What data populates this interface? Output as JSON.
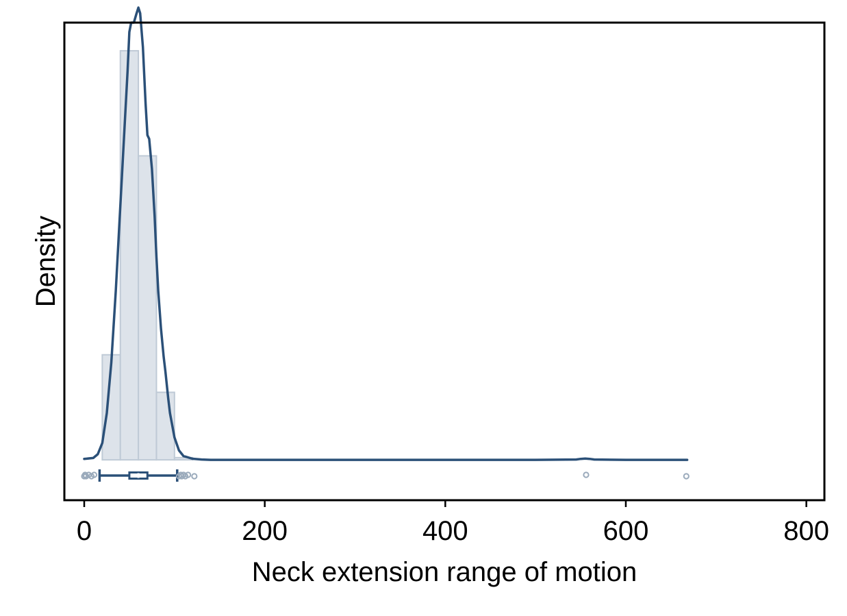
{
  "chart_data": {
    "type": "histogram",
    "title": "",
    "xlabel": "Neck extension range of motion",
    "ylabel": "Density",
    "xlim": [
      -22,
      820
    ],
    "ylim": [
      -0.00215,
      0.0233
    ],
    "xticks": [
      0,
      200,
      400,
      600,
      800
    ],
    "xtick_labels": [
      "0",
      "200",
      "400",
      "600",
      "800"
    ],
    "show_y_ticks": false,
    "grid": false,
    "legend": "none",
    "colors": {
      "frame": "#000000",
      "bar_fill": "#dde3ea",
      "bar_edge": "#bfcad6",
      "line": "#2b5078",
      "points": "#9aaabb"
    },
    "histogram": {
      "bin_width": 20,
      "bins": [
        {
          "start": 20,
          "end": 40,
          "density": 0.0056
        },
        {
          "start": 40,
          "end": 60,
          "density": 0.0218
        },
        {
          "start": 60,
          "end": 80,
          "density": 0.0162
        },
        {
          "start": 80,
          "end": 100,
          "density": 0.0036
        },
        {
          "start": 100,
          "end": 120,
          "density": 0.00012
        }
      ]
    },
    "density_curve": {
      "x": [
        0,
        10,
        15,
        20,
        25,
        30,
        35,
        40,
        45,
        48,
        50,
        52,
        55,
        58,
        60,
        62,
        65,
        68,
        70,
        72,
        75,
        78,
        80,
        82,
        85,
        88,
        90,
        93,
        95,
        100,
        105,
        110,
        120,
        130,
        140,
        200,
        300,
        400,
        500,
        545,
        550,
        555,
        560,
        565,
        600,
        640,
        668
      ],
      "y": [
        5e-05,
        0.0001,
        0.0003,
        0.0009,
        0.0025,
        0.0052,
        0.009,
        0.0135,
        0.018,
        0.0207,
        0.0228,
        0.0233,
        0.0233,
        0.0238,
        0.0241,
        0.0238,
        0.022,
        0.019,
        0.0173,
        0.0171,
        0.0155,
        0.013,
        0.0108,
        0.009,
        0.007,
        0.0055,
        0.0047,
        0.0033,
        0.0025,
        0.0012,
        0.0005,
        0.0002,
        6e-05,
        2e-05,
        0.0,
        0.0,
        0.0,
        0.0,
        0.0,
        2e-05,
        5e-05,
        7e-05,
        5e-05,
        2e-05,
        0.0,
        0.0,
        0.0
      ]
    },
    "box_plot": {
      "whisker_low": 17,
      "q1": 50,
      "median": 60,
      "q3": 70,
      "whisker_high": 103,
      "outliers": [
        0,
        1,
        2,
        5,
        8,
        11,
        105,
        107,
        108,
        110,
        112,
        115,
        122,
        556,
        667
      ]
    }
  }
}
